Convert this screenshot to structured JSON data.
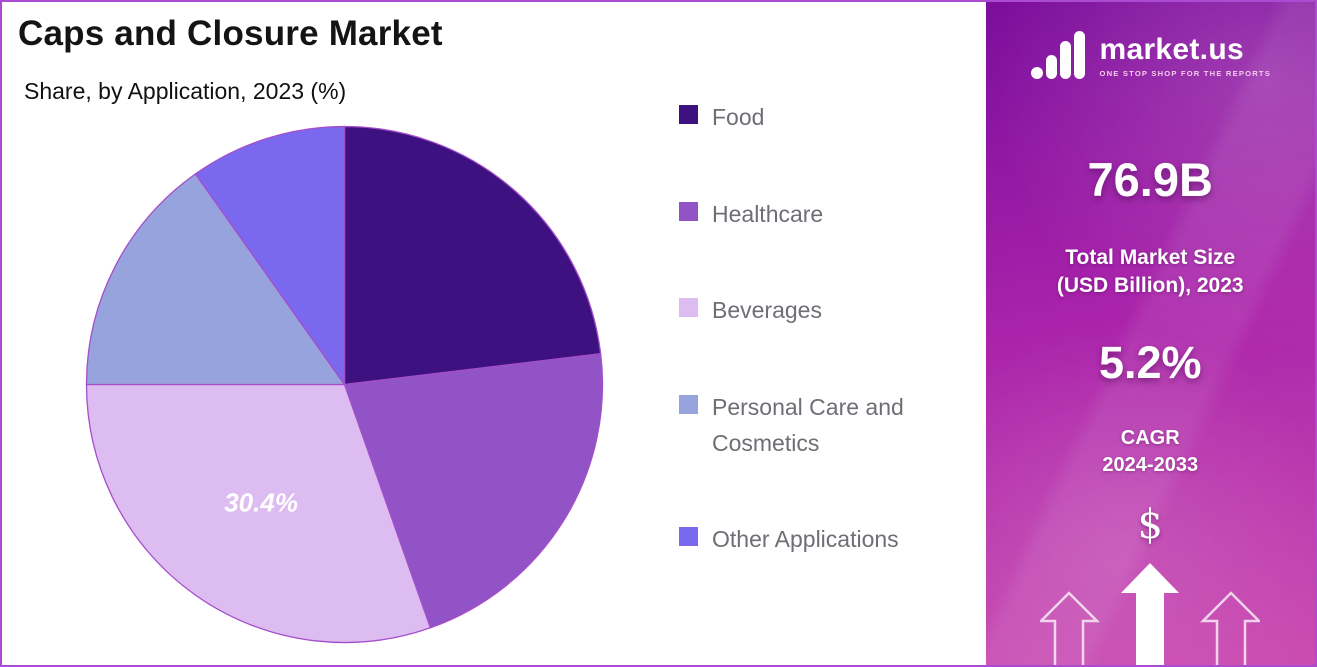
{
  "page": {
    "title": "Caps and Closure Market",
    "subtitle": "Share, by Application, 2023 (%)"
  },
  "chart_data": {
    "type": "pie",
    "title": "Caps and Closure Market",
    "subtitle": "Share, by Application, 2023 (%)",
    "unit": "%",
    "legend_position": "right",
    "start_angle_deg": 0,
    "direction": "clockwise",
    "outline_color": "#a44ecb",
    "slices": [
      {
        "label": "Food",
        "value": 23.1,
        "color": "#3e1180"
      },
      {
        "label": "Healthcare",
        "value": 21.5,
        "color": "#9253c6"
      },
      {
        "label": "Beverages",
        "value": 30.4,
        "color": "#ddbcf1",
        "data_label": "30.4%"
      },
      {
        "label": "Personal Care and Cosmetics",
        "value": 15.2,
        "color": "#97a3dc"
      },
      {
        "label": "Other Applications",
        "value": 9.8,
        "color": "#7a68ee"
      }
    ]
  },
  "sidebar": {
    "brand": {
      "name": "market.us",
      "tagline": "ONE STOP SHOP FOR THE REPORTS"
    },
    "stats": [
      {
        "value": "76.9B",
        "label": "Total Market Size\n(USD Billion), 2023"
      },
      {
        "value": "5.2%",
        "label": "CAGR\n2024-2033"
      }
    ],
    "icons": {
      "dollar": "$"
    },
    "colors": {
      "gradient_top": "#7b0e9c",
      "gradient_bottom": "#cb4db1",
      "frame_border": "#aa4bd1"
    }
  }
}
